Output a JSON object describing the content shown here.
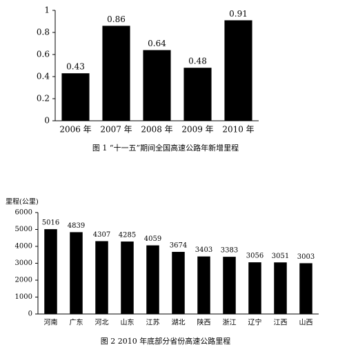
{
  "chart_data": [
    {
      "type": "bar",
      "title": "图 1 “十一五”期间全国高速公路年新增里程",
      "categories": [
        "2006 年",
        "2007 年",
        "2008 年",
        "2009 年",
        "2010 年"
      ],
      "values": [
        0.43,
        0.86,
        0.64,
        0.48,
        0.91
      ],
      "color": "#000000",
      "ylim": [
        0,
        1
      ],
      "yticks": [
        0,
        0.2,
        0.4,
        0.6,
        0.8,
        1
      ],
      "grid": false
    },
    {
      "type": "bar",
      "title": "图 2 2010 年底部分省份高速公路里程",
      "y_label": "里程(公里)",
      "categories": [
        "河南",
        "广东",
        "河北",
        "山东",
        "江苏",
        "湖北",
        "陕西",
        "浙江",
        "辽宁",
        "江西",
        "山西"
      ],
      "values": [
        5016,
        4839,
        4307,
        4285,
        4059,
        3674,
        3403,
        3383,
        3056,
        3051,
        3003
      ],
      "color": "#000000",
      "ylim": [
        0,
        6000
      ],
      "yticks": [
        0,
        1000,
        2000,
        3000,
        4000,
        5000,
        6000
      ],
      "grid": false
    }
  ]
}
